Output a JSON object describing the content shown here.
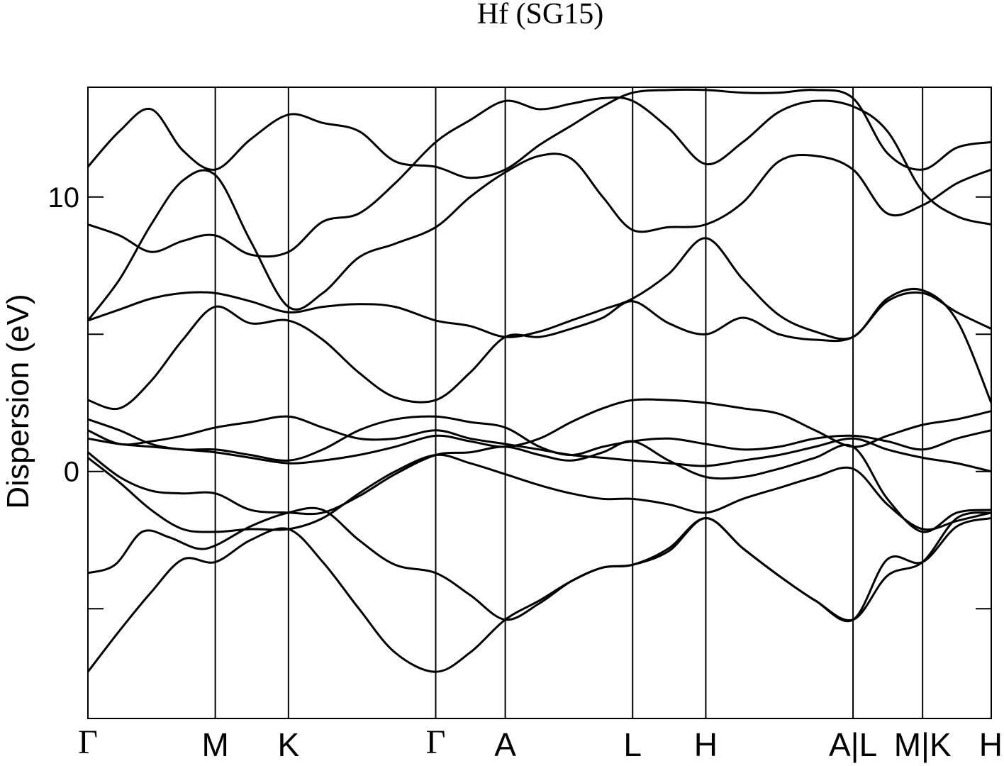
{
  "chart_data": {
    "type": "line",
    "title": "Hf (SG15)",
    "xlabel": "",
    "ylabel": "Dispersion (eV)",
    "ylim": [
      -9,
      14
    ],
    "yticks": [
      {
        "value": 10,
        "label": "10"
      },
      {
        "value": 0,
        "label": "0"
      }
    ],
    "yticks_unlabeled": [
      5,
      -5
    ],
    "xlim": [
      0,
      10
    ],
    "grid": false,
    "legend": "none",
    "high_symmetry_points": [
      {
        "x": 0.0,
        "label": "Γ"
      },
      {
        "x": 1.41,
        "label": "M"
      },
      {
        "x": 2.22,
        "label": "K"
      },
      {
        "x": 3.85,
        "label": "Γ"
      },
      {
        "x": 4.62,
        "label": "A"
      },
      {
        "x": 6.03,
        "label": "L"
      },
      {
        "x": 6.84,
        "label": "H"
      },
      {
        "x": 8.47,
        "label": "A|L"
      },
      {
        "x": 9.24,
        "label": "M|K"
      },
      {
        "x": 10.0,
        "label": "H"
      }
    ],
    "series": [
      {
        "x": [
          0,
          0.35,
          0.7,
          1.05,
          1.41,
          1.8,
          2.22,
          2.6,
          3.0,
          3.4,
          3.85,
          4.23,
          4.62,
          5.0,
          5.35,
          5.7,
          6.03,
          6.43,
          6.84,
          7.25,
          7.65,
          8.05,
          8.47,
          8.85,
          9.24,
          9.62,
          10.0
        ],
        "y": [
          -7.3,
          -5.8,
          -4.4,
          -3.2,
          -3.3,
          -2.5,
          -2.1,
          -3.3,
          -5.0,
          -6.6,
          -7.3,
          -6.6,
          -5.4,
          -4.7,
          -4.0,
          -3.5,
          -3.4,
          -2.8,
          -1.7,
          -2.8,
          -3.8,
          -4.7,
          -5.4,
          -3.8,
          -3.3,
          -1.7,
          -1.5
        ]
      },
      {
        "x": [
          0,
          0.3,
          0.6,
          0.9,
          1.2,
          1.41,
          1.8,
          2.22,
          2.6,
          3.0,
          3.4,
          3.85,
          4.23,
          4.62,
          5.0,
          5.35,
          5.7,
          6.03,
          6.43,
          6.84,
          7.25,
          7.65,
          8.05,
          8.47,
          8.85,
          9.24,
          9.62,
          10.0
        ],
        "y": [
          -3.7,
          -3.4,
          -2.2,
          -2.4,
          -2.8,
          -2.7,
          -2.0,
          -1.5,
          -1.4,
          -2.5,
          -3.4,
          -3.7,
          -4.5,
          -5.4,
          -4.8,
          -4.0,
          -3.5,
          -3.4,
          -2.9,
          -1.7,
          -2.8,
          -3.8,
          -4.7,
          -5.4,
          -3.2,
          -3.3,
          -2.0,
          -1.7
        ]
      },
      {
        "x": [
          0,
          0.35,
          0.7,
          1.05,
          1.41,
          1.8,
          2.22,
          2.6,
          3.0,
          3.4,
          3.85,
          4.23,
          4.62,
          5.0,
          5.35,
          5.7,
          6.03,
          6.43,
          6.84,
          7.25,
          7.65,
          8.05,
          8.47,
          8.85,
          9.24,
          9.62,
          10.0
        ],
        "y": [
          0.5,
          -0.4,
          -1.4,
          -2.1,
          -2.2,
          -2.1,
          -2.1,
          -1.7,
          -0.8,
          0.0,
          0.6,
          0.3,
          -0.1,
          -0.5,
          -0.8,
          -1.0,
          -1.0,
          -1.2,
          -1.5,
          -1.0,
          -0.6,
          -0.2,
          0.1,
          -1.2,
          -2.1,
          -1.8,
          -1.5
        ]
      },
      {
        "x": [
          0,
          0.35,
          0.7,
          1.05,
          1.41,
          1.8,
          2.22,
          2.6,
          3.0,
          3.4,
          3.85,
          4.23,
          4.62,
          5.0,
          5.35,
          5.7,
          6.03,
          6.43,
          6.84,
          7.25,
          7.65,
          8.05,
          8.47,
          8.85,
          9.24,
          9.62,
          10.0
        ],
        "y": [
          0.7,
          -0.2,
          -0.7,
          -0.8,
          -0.8,
          -1.4,
          -1.5,
          -1.5,
          -0.9,
          -0.1,
          0.6,
          0.7,
          0.9,
          0.6,
          0.4,
          0.7,
          1.1,
          0.4,
          -0.2,
          -0.2,
          0.1,
          0.5,
          0.9,
          -1.0,
          -2.2,
          -1.5,
          -1.4
        ]
      },
      {
        "x": [
          0,
          0.35,
          0.7,
          1.05,
          1.41,
          1.8,
          2.22,
          2.6,
          3.0,
          3.4,
          3.85,
          4.23,
          4.62,
          5.0,
          5.35,
          5.7,
          6.03,
          6.43,
          6.84,
          7.25,
          7.65,
          8.05,
          8.47,
          8.85,
          9.24,
          9.62,
          10.0
        ],
        "y": [
          1.2,
          1.0,
          0.9,
          0.8,
          0.7,
          0.5,
          0.3,
          0.4,
          0.6,
          0.9,
          1.3,
          1.1,
          0.9,
          1.2,
          1.8,
          2.3,
          2.6,
          2.6,
          2.5,
          2.3,
          2.1,
          1.5,
          0.9,
          1.3,
          1.7,
          1.9,
          2.2
        ]
      },
      {
        "x": [
          0,
          0.35,
          0.7,
          1.05,
          1.41,
          1.8,
          2.22,
          2.6,
          3.0,
          3.4,
          3.85,
          4.23,
          4.62,
          5.0,
          5.35,
          5.7,
          6.03,
          6.43,
          6.84,
          7.25,
          7.65,
          8.05,
          8.47,
          8.85,
          9.24,
          9.62,
          10.0
        ],
        "y": [
          1.5,
          1.0,
          1.1,
          1.3,
          1.6,
          1.8,
          2.0,
          1.6,
          1.2,
          1.2,
          1.5,
          1.2,
          1.0,
          0.8,
          0.6,
          0.5,
          0.4,
          0.3,
          0.2,
          0.4,
          0.6,
          0.9,
          1.2,
          0.8,
          0.5,
          0.3,
          0.0
        ]
      },
      {
        "x": [
          0,
          0.35,
          0.7,
          1.05,
          1.41,
          1.8,
          2.22,
          2.6,
          3.0,
          3.4,
          3.85,
          4.23,
          4.62,
          5.0,
          5.35,
          5.7,
          6.03,
          6.43,
          6.84,
          7.25,
          7.65,
          8.05,
          8.47,
          8.85,
          9.24,
          9.62,
          10.0
        ],
        "y": [
          1.9,
          1.5,
          1.0,
          0.8,
          0.8,
          0.6,
          0.4,
          0.8,
          1.5,
          1.9,
          2.0,
          1.8,
          1.6,
          0.9,
          0.6,
          0.9,
          1.1,
          1.2,
          1.0,
          0.8,
          0.9,
          1.2,
          1.3,
          1.1,
          0.8,
          1.2,
          1.5
        ]
      },
      {
        "x": [
          0,
          0.35,
          0.7,
          1.05,
          1.41,
          1.8,
          2.22,
          2.6,
          3.0,
          3.4,
          3.85,
          4.23,
          4.62,
          5.0,
          5.35,
          5.7,
          6.03,
          6.43,
          6.84,
          7.25,
          7.65,
          8.05,
          8.47,
          8.85,
          9.24,
          9.62,
          10.0
        ],
        "y": [
          2.6,
          2.3,
          3.3,
          4.8,
          6.0,
          5.4,
          5.5,
          4.8,
          3.6,
          2.7,
          2.6,
          3.6,
          4.9,
          4.9,
          5.2,
          5.6,
          6.2,
          5.4,
          5.0,
          5.6,
          5.0,
          4.8,
          4.9,
          6.2,
          6.5,
          5.8,
          5.2
        ]
      },
      {
        "x": [
          0,
          0.35,
          0.7,
          1.05,
          1.41,
          1.8,
          2.22,
          2.6,
          3.0,
          3.4,
          3.85,
          4.23,
          4.62,
          5.0,
          5.35,
          5.7,
          6.03,
          6.43,
          6.84,
          7.25,
          7.65,
          8.05,
          8.47,
          8.85,
          9.24,
          9.62,
          10.0
        ],
        "y": [
          5.5,
          5.9,
          6.3,
          6.5,
          6.5,
          6.2,
          5.8,
          6.0,
          6.1,
          6.0,
          5.5,
          5.3,
          4.9,
          5.1,
          5.5,
          5.9,
          6.3,
          7.2,
          8.5,
          7.0,
          5.7,
          5.1,
          4.9,
          6.3,
          6.6,
          5.5,
          2.5
        ]
      },
      {
        "x": [
          0,
          0.35,
          0.7,
          1.05,
          1.41,
          1.8,
          2.22,
          2.6,
          3.0,
          3.4,
          3.85,
          4.23,
          4.62,
          5.0,
          5.35,
          5.7,
          6.03,
          6.43,
          6.84,
          7.25,
          7.65,
          8.05,
          8.47,
          8.85,
          9.24,
          9.62,
          10.0
        ],
        "y": [
          5.5,
          7.0,
          9.0,
          10.6,
          10.8,
          8.4,
          6.0,
          6.5,
          7.8,
          8.3,
          8.9,
          10.0,
          10.9,
          11.5,
          11.4,
          10.0,
          8.8,
          8.9,
          9.0,
          9.8,
          11.3,
          11.5,
          11.0,
          9.4,
          9.7,
          10.5,
          11.0
        ]
      },
      {
        "x": [
          0,
          0.35,
          0.7,
          1.05,
          1.41,
          1.8,
          2.22,
          2.6,
          3.0,
          3.4,
          3.85,
          4.23,
          4.62,
          5.0,
          5.35,
          5.7,
          6.03,
          6.43,
          6.84,
          7.25,
          7.65,
          8.05,
          8.47,
          8.85,
          9.24,
          9.62,
          10.0
        ],
        "y": [
          9.0,
          8.6,
          8.0,
          8.4,
          8.6,
          7.9,
          8.0,
          9.1,
          9.4,
          10.5,
          12.0,
          12.8,
          13.5,
          13.2,
          13.4,
          13.6,
          13.5,
          12.5,
          11.2,
          12.0,
          13.1,
          13.5,
          13.3,
          12.4,
          10.2,
          9.3,
          9.0
        ]
      },
      {
        "x": [
          0,
          0.35,
          0.7,
          1.05,
          1.41,
          1.8,
          2.22,
          2.6,
          3.0,
          3.4,
          3.85,
          4.23,
          4.62,
          5.0,
          5.35,
          5.7,
          6.03,
          6.43,
          6.84,
          7.25,
          7.65,
          8.05,
          8.47,
          8.85,
          9.24,
          9.62,
          10.0
        ],
        "y": [
          11.1,
          12.4,
          13.2,
          11.7,
          11.0,
          12.1,
          13.0,
          12.7,
          12.4,
          11.3,
          11.1,
          10.7,
          11.0,
          11.9,
          12.6,
          13.3,
          13.8,
          13.9,
          13.9,
          13.8,
          13.8,
          13.9,
          13.6,
          11.6,
          11.0,
          11.8,
          12.0
        ]
      }
    ]
  }
}
